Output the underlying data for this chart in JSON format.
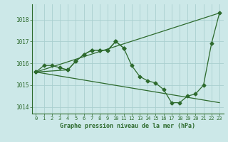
{
  "series": [
    {
      "x": [
        0,
        1,
        2,
        3,
        4,
        5,
        6,
        7,
        8,
        9,
        10,
        11,
        12,
        13,
        14,
        15,
        16,
        17,
        18,
        19,
        20,
        21,
        22,
        23
      ],
      "y": [
        1015.6,
        1015.9,
        1015.9,
        1015.8,
        1015.7,
        1016.1,
        1016.4,
        1016.6,
        1016.6,
        1016.6,
        1017.0,
        1016.7,
        1015.9,
        1015.4,
        1015.2,
        1015.1,
        1014.8,
        1014.2,
        1014.2,
        1014.5,
        1014.6,
        1015.0,
        1016.9,
        1018.3
      ],
      "has_markers": true
    },
    {
      "x": [
        0,
        23
      ],
      "y": [
        1015.6,
        1018.3
      ],
      "has_markers": false
    },
    {
      "x": [
        0,
        23
      ],
      "y": [
        1015.6,
        1014.2
      ],
      "has_markers": false
    },
    {
      "x": [
        0,
        4,
        5,
        6,
        7,
        8,
        9,
        10,
        11
      ],
      "y": [
        1015.6,
        1015.7,
        1016.1,
        1016.4,
        1016.6,
        1016.6,
        1016.6,
        1017.0,
        1016.7
      ],
      "has_markers": true
    }
  ],
  "line_color": "#2d6a2d",
  "marker": "D",
  "markersize": 2.5,
  "linewidth": 0.9,
  "background_color": "#cce8e8",
  "grid_color": "#aacfcf",
  "xlabel": "Graphe pression niveau de la mer (hPa)",
  "xlabel_color": "#2d6a2d",
  "tick_color": "#2d6a2d",
  "xlim": [
    -0.5,
    23.5
  ],
  "ylim": [
    1013.7,
    1018.7
  ],
  "yticks": [
    1014,
    1015,
    1016,
    1017,
    1018
  ],
  "xticks": [
    0,
    1,
    2,
    3,
    4,
    5,
    6,
    7,
    8,
    9,
    10,
    11,
    12,
    13,
    14,
    15,
    16,
    17,
    18,
    19,
    20,
    21,
    22,
    23
  ],
  "figwidth": 3.2,
  "figheight": 2.0,
  "dpi": 100
}
